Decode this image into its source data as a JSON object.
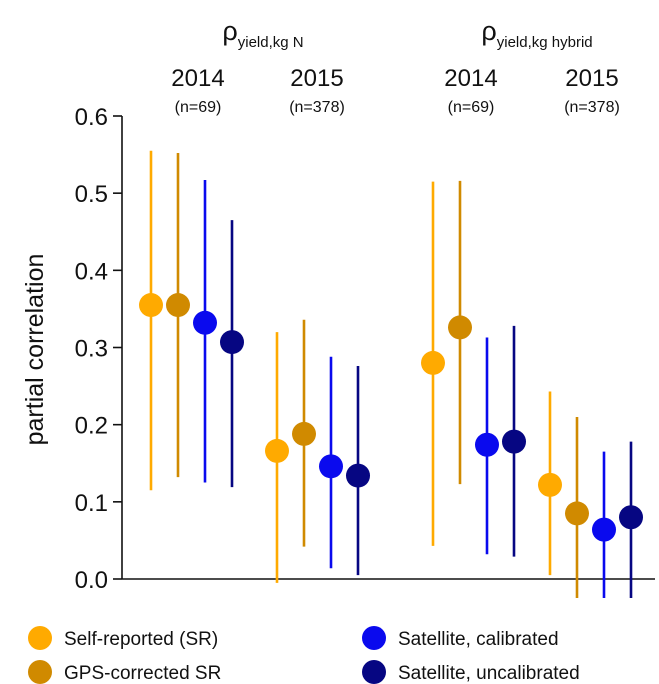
{
  "chart_data": {
    "type": "scatter",
    "title": "",
    "ylabel": "partial correlation",
    "xlabel": "",
    "ylim": [
      0,
      0.6
    ],
    "yticks": [
      "0.0",
      "0.1",
      "0.2",
      "0.3",
      "0.4",
      "0.5",
      "0.6"
    ],
    "grid": false,
    "legend_position": "bottom",
    "panels": [
      {
        "title_main": "ρ",
        "title_sub": "yield,kg N",
        "years": [
          {
            "year": "2014",
            "n": "(n=69)"
          },
          {
            "year": "2015",
            "n": "(n=378)"
          }
        ]
      },
      {
        "title_main": "ρ",
        "title_sub": "yield,kg hybrid",
        "years": [
          {
            "year": "2014",
            "n": "(n=69)"
          },
          {
            "year": "2015",
            "n": "(n=378)"
          }
        ]
      }
    ],
    "groups": [
      "ρ yield,kg N 2014",
      "ρ yield,kg N 2015",
      "ρ yield,kg hybrid 2014",
      "ρ yield,kg hybrid 2015"
    ],
    "series": [
      {
        "name": "Self-reported (SR)",
        "color": "#FFAA00",
        "values": [
          0.355,
          0.166,
          0.28,
          0.122
        ],
        "lower": [
          0.115,
          -0.005,
          0.043,
          0.005
        ],
        "upper": [
          0.555,
          0.32,
          0.515,
          0.243
        ]
      },
      {
        "name": "GPS-corrected SR",
        "color": "#D08A00",
        "values": [
          0.355,
          0.188,
          0.326,
          0.085
        ],
        "lower": [
          0.132,
          0.042,
          0.123,
          -0.025
        ],
        "upper": [
          0.552,
          0.336,
          0.516,
          0.21
        ]
      },
      {
        "name": "Satellite, calibrated",
        "color": "#0A0AEE",
        "values": [
          0.332,
          0.146,
          0.174,
          0.064
        ],
        "lower": [
          0.125,
          0.014,
          0.032,
          -0.025
        ],
        "upper": [
          0.517,
          0.288,
          0.313,
          0.165
        ]
      },
      {
        "name": "Satellite, uncalibrated",
        "color": "#060682",
        "values": [
          0.307,
          0.134,
          0.178,
          0.08
        ],
        "lower": [
          0.119,
          0.005,
          0.029,
          -0.025
        ],
        "upper": [
          0.465,
          0.276,
          0.328,
          0.178
        ]
      }
    ]
  }
}
